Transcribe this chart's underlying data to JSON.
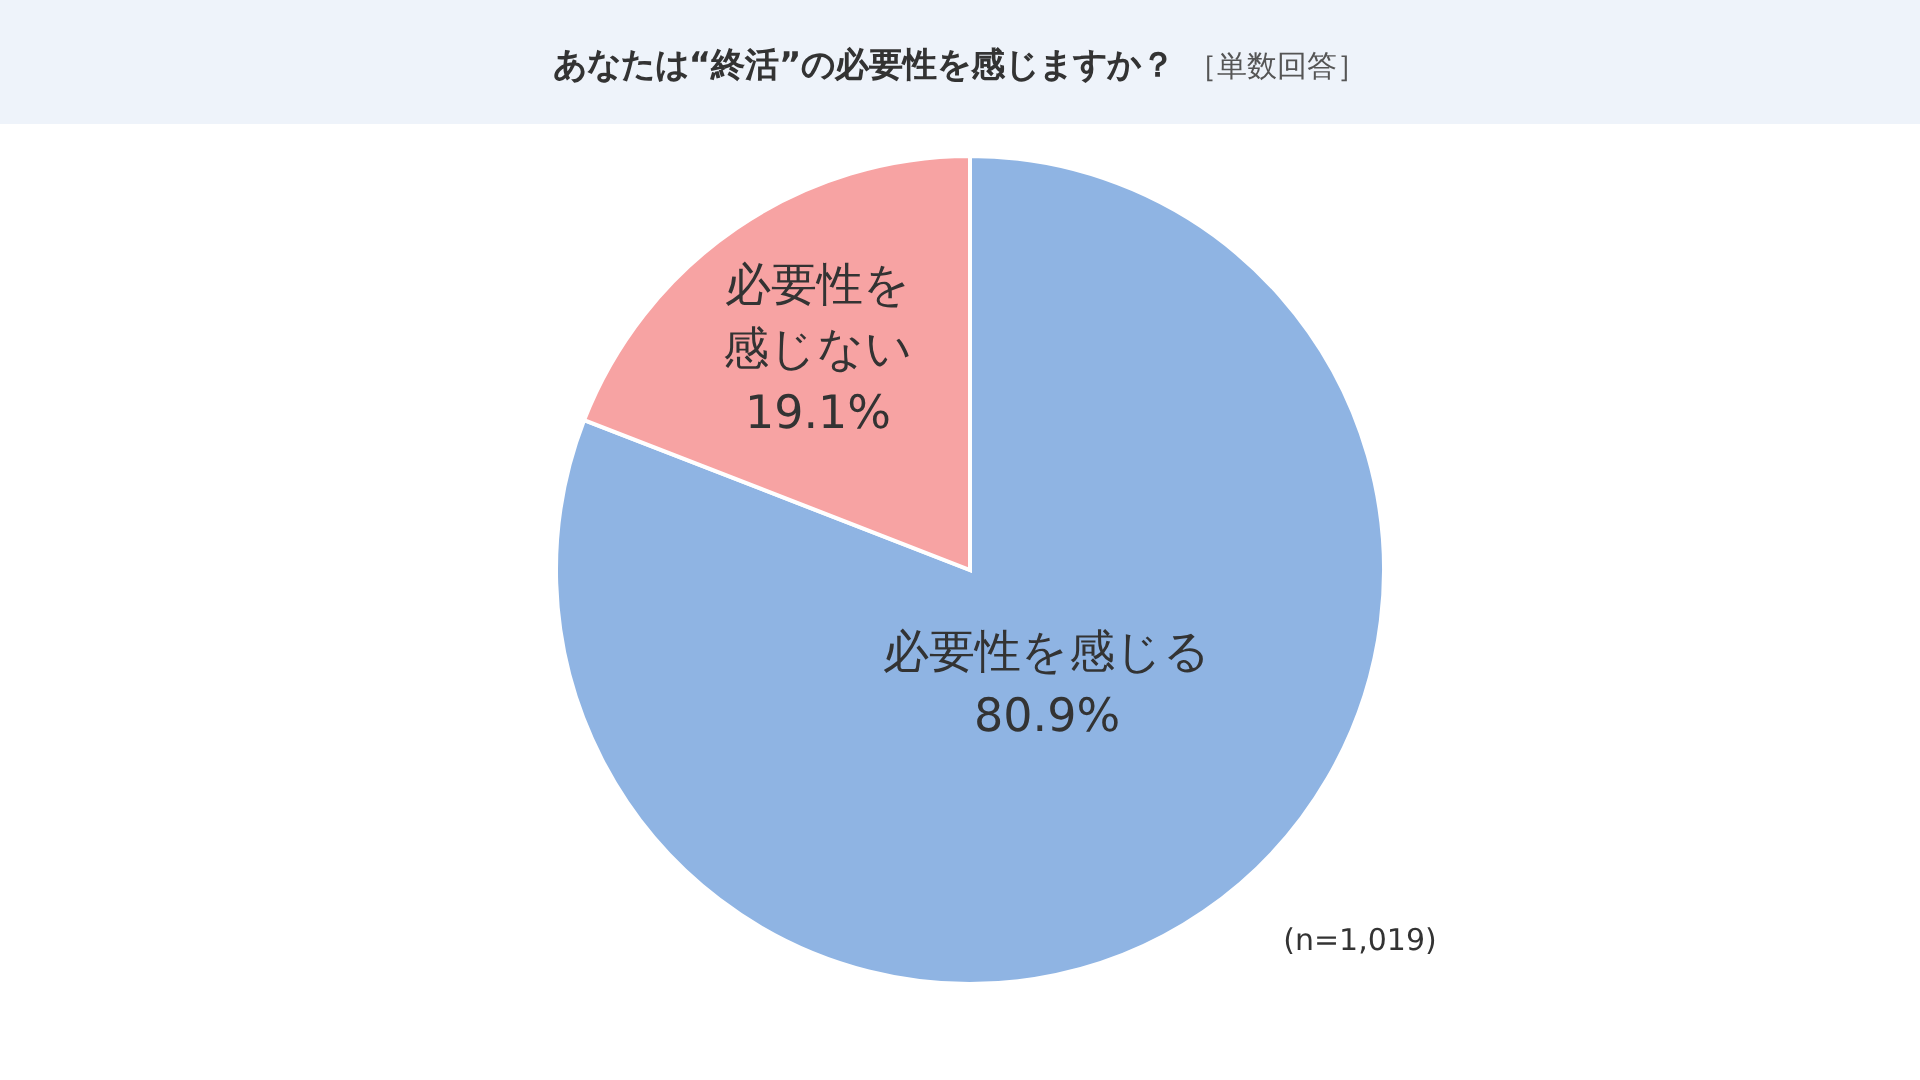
{
  "chart_data": {
    "type": "pie",
    "title": "あなたは“終活”の必要性を感じますか？",
    "subtitle": "［単数回答］",
    "categories": [
      "必要性を感じる",
      "必要性を感じない"
    ],
    "values": [
      80.9,
      19.1
    ],
    "value_labels": [
      "80.9%",
      "19.1%"
    ],
    "colors": [
      "#8fb4e3",
      "#f7a3a3"
    ],
    "annotations": [
      "(n=1,019)"
    ]
  }
}
